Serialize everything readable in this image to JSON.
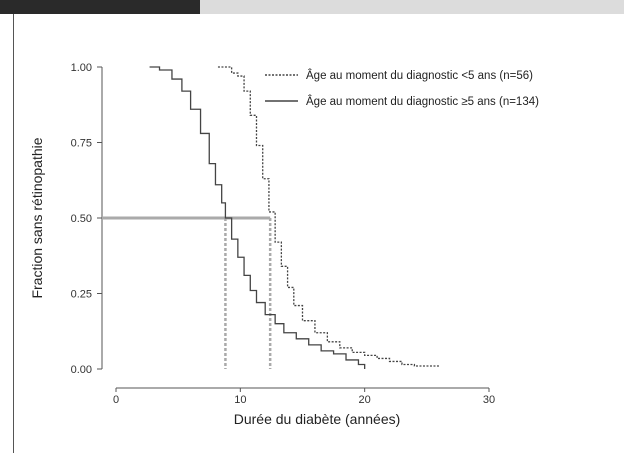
{
  "chart_data": {
    "type": "line",
    "title": "",
    "xlabel": "Durée du diabète (années)",
    "ylabel": "Fraction sans rétinopathie",
    "xlim": [
      0,
      30
    ],
    "ylim": [
      0,
      1
    ],
    "x_ticks": [
      "0",
      "10",
      "20",
      "30"
    ],
    "y_ticks": [
      "0.00",
      "0.25",
      "0.50",
      "0.75",
      "1.00"
    ],
    "grid": false,
    "legend_position": "top-right",
    "median_line": {
      "y": 0.5,
      "x_values": [
        8.8,
        12.4
      ],
      "color": "#aaaaaa"
    },
    "series": [
      {
        "name": "Âge au moment du diagnostic <5 ans (n=56)",
        "style": "dotted",
        "color": "#444444",
        "points": [
          [
            8.2,
            1.0
          ],
          [
            9.2,
            1.0
          ],
          [
            9.3,
            0.98
          ],
          [
            9.8,
            0.97
          ],
          [
            10.3,
            0.92
          ],
          [
            10.8,
            0.84
          ],
          [
            11.3,
            0.74
          ],
          [
            11.8,
            0.63
          ],
          [
            12.3,
            0.52
          ],
          [
            12.8,
            0.42
          ],
          [
            13.3,
            0.34
          ],
          [
            13.8,
            0.27
          ],
          [
            14.3,
            0.21
          ],
          [
            15.0,
            0.16
          ],
          [
            16.0,
            0.12
          ],
          [
            17.0,
            0.09
          ],
          [
            18.0,
            0.07
          ],
          [
            19.0,
            0.055
          ],
          [
            20.0,
            0.045
          ],
          [
            21.0,
            0.035
          ],
          [
            22.0,
            0.025
          ],
          [
            23.0,
            0.015
          ],
          [
            24.0,
            0.01
          ],
          [
            26.0,
            0.01
          ]
        ]
      },
      {
        "name": "Âge au moment du diagnostic ≥5 ans (n=134)",
        "style": "solid",
        "color": "#444444",
        "points": [
          [
            2.7,
            1.0
          ],
          [
            3.5,
            0.99
          ],
          [
            4.5,
            0.96
          ],
          [
            5.3,
            0.92
          ],
          [
            6.0,
            0.86
          ],
          [
            6.8,
            0.78
          ],
          [
            7.5,
            0.68
          ],
          [
            8.0,
            0.61
          ],
          [
            8.5,
            0.55
          ],
          [
            8.8,
            0.5
          ],
          [
            9.3,
            0.43
          ],
          [
            9.8,
            0.37
          ],
          [
            10.3,
            0.31
          ],
          [
            10.8,
            0.26
          ],
          [
            11.3,
            0.22
          ],
          [
            12.0,
            0.18
          ],
          [
            12.8,
            0.15
          ],
          [
            13.5,
            0.12
          ],
          [
            14.5,
            0.1
          ],
          [
            15.5,
            0.08
          ],
          [
            16.5,
            0.06
          ],
          [
            17.5,
            0.05
          ],
          [
            18.5,
            0.03
          ],
          [
            19.5,
            0.015
          ],
          [
            20.0,
            0.0
          ]
        ]
      }
    ]
  }
}
